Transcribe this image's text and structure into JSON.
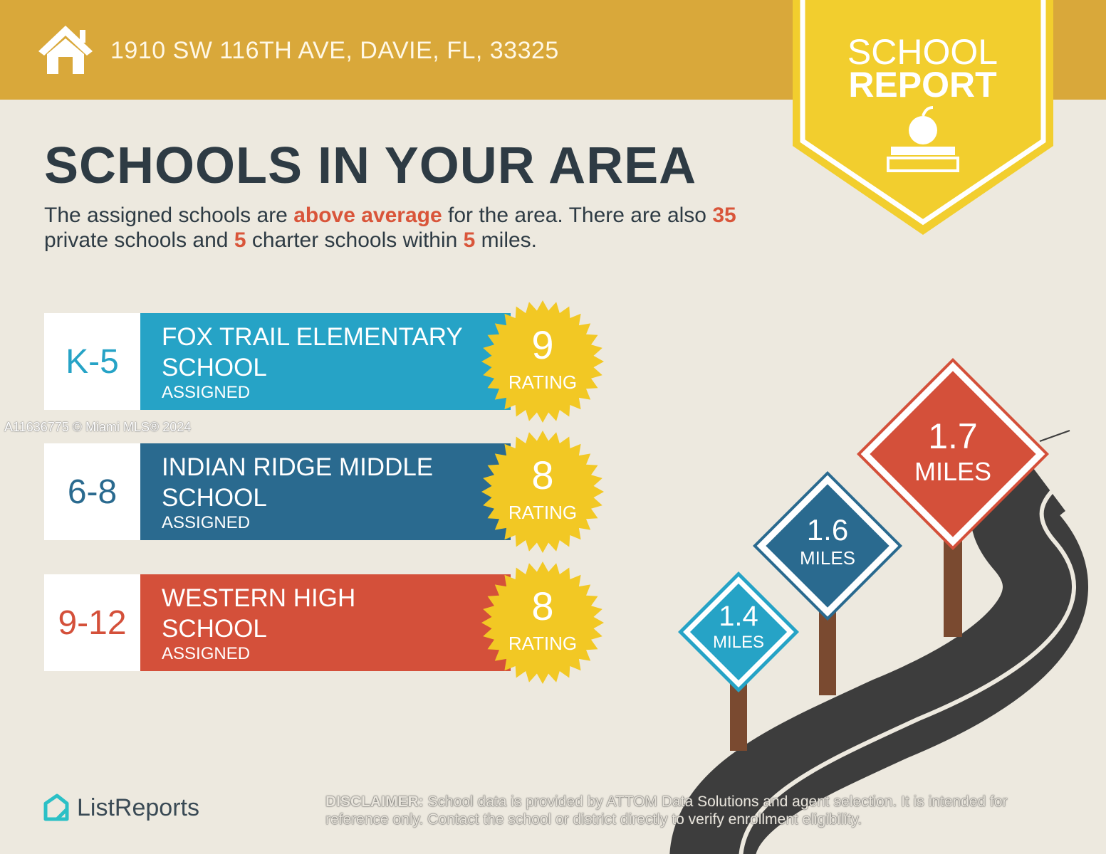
{
  "header": {
    "address": "1910 SW 116TH AVE, DAVIE, FL, 33325",
    "icon": "house-icon"
  },
  "badge": {
    "line1": "SCHOOL",
    "line2": "REPORT",
    "icon": "apple-on-book-icon"
  },
  "title": "SCHOOLS IN YOUR AREA",
  "summary": {
    "p1": "The assigned schools are ",
    "hl1": "above average",
    "p2": " for the area. There are also ",
    "n_private": "35",
    "p3": " private schools and ",
    "n_charter": "5",
    "p4": " charter schools within ",
    "n_miles": "5",
    "p5": " miles."
  },
  "schools": [
    {
      "grade": "K-5",
      "name1": "FOX TRAIL ELEMENTARY",
      "name2": "SCHOOL",
      "status": "ASSIGNED",
      "rating": "9",
      "rating_label": "RATING",
      "color": "#26A3C6",
      "distance": "1.4",
      "distance_unit": "MILES"
    },
    {
      "grade": "6-8",
      "name1": "INDIAN RIDGE MIDDLE",
      "name2": "SCHOOL",
      "status": "ASSIGNED",
      "rating": "8",
      "rating_label": "RATING",
      "color": "#2A6A8F",
      "distance": "1.6",
      "distance_unit": "MILES"
    },
    {
      "grade": "9-12",
      "name1": "WESTERN HIGH",
      "name2": "SCHOOL",
      "status": "ASSIGNED",
      "rating": "8",
      "rating_label": "RATING",
      "color": "#D4503A",
      "distance": "1.7",
      "distance_unit": "MILES"
    }
  ],
  "watermark": "A11636775 © Miami MLS® 2024",
  "logo": "ListReports",
  "disclaimer": {
    "label": "DISCLAIMER:",
    "text": " School data is provided by ATTOM Data Solutions and agent selection. It is intended for reference only. Contact the school or district directly to verify enrollment eligibility."
  },
  "colors": {
    "banner": "#D9A83A",
    "accent": "#D9553A",
    "star": "#F2C824",
    "background": "#EDE9DF"
  }
}
